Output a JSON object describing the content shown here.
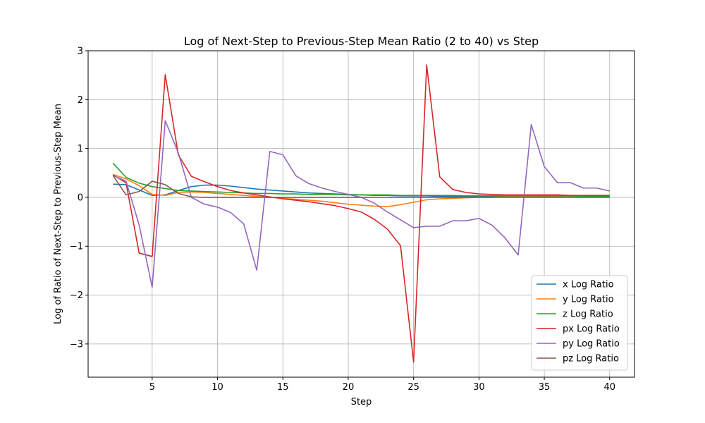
{
  "chart_data": {
    "type": "line",
    "title": "Log of Next-Step to Previous-Step Mean Ratio (2 to 40) vs Step",
    "xlabel": "Step",
    "ylabel": "Log of Ratio of Next-Step to Previous-Step Mean",
    "xlim": [
      0.1,
      41.9
    ],
    "ylim": [
      -3.68,
      3.0
    ],
    "xticks": [
      5,
      10,
      15,
      20,
      25,
      30,
      35,
      40
    ],
    "xtick_labels": [
      "5",
      "10",
      "15",
      "20",
      "25",
      "30",
      "35",
      "40"
    ],
    "yticks": [
      -3,
      -2,
      -1,
      0,
      1,
      2,
      3
    ],
    "ytick_labels": [
      "−3",
      "−2",
      "−1",
      "0",
      "1",
      "2",
      "3"
    ],
    "grid": true,
    "legend_position": "lower-right",
    "x": [
      2,
      3,
      4,
      5,
      6,
      7,
      8,
      9,
      10,
      11,
      12,
      13,
      14,
      15,
      16,
      17,
      18,
      19,
      20,
      21,
      22,
      23,
      24,
      25,
      26,
      27,
      28,
      29,
      30,
      31,
      32,
      33,
      34,
      35,
      36,
      37,
      38,
      39,
      40
    ],
    "series": [
      {
        "name": "x Log Ratio",
        "color": "#1f77b4",
        "values": [
          0.27,
          0.26,
          0.15,
          0.04,
          0.05,
          0.14,
          0.22,
          0.25,
          0.25,
          0.23,
          0.2,
          0.17,
          0.15,
          0.13,
          0.11,
          0.09,
          0.08,
          0.07,
          0.06,
          0.05,
          0.04,
          0.04,
          0.03,
          0.03,
          0.03,
          0.02,
          0.02,
          0.02,
          0.02,
          0.02,
          0.02,
          0.02,
          0.01,
          0.01,
          0.01,
          0.01,
          0.01,
          0.01,
          0.01
        ]
      },
      {
        "name": "y Log Ratio",
        "color": "#ff7f0e",
        "values": [
          0.47,
          0.38,
          0.24,
          0.06,
          0.04,
          0.1,
          0.11,
          0.1,
          0.08,
          0.06,
          0.04,
          0.02,
          0.0,
          -0.02,
          -0.04,
          -0.06,
          -0.08,
          -0.11,
          -0.14,
          -0.16,
          -0.18,
          -0.19,
          -0.15,
          -0.1,
          -0.05,
          -0.03,
          -0.02,
          -0.01,
          0.0,
          0.0,
          0.01,
          0.01,
          0.01,
          0.01,
          0.01,
          0.01,
          0.01,
          0.01,
          0.01
        ]
      },
      {
        "name": "z Log Ratio",
        "color": "#2ca02c",
        "values": [
          0.7,
          0.41,
          0.29,
          0.22,
          0.18,
          0.14,
          0.13,
          0.12,
          0.11,
          0.1,
          0.09,
          0.08,
          0.08,
          0.07,
          0.07,
          0.06,
          0.06,
          0.06,
          0.05,
          0.05,
          0.05,
          0.05,
          0.04,
          0.04,
          0.04,
          0.04,
          0.04,
          0.03,
          0.03,
          0.03,
          0.03,
          0.03,
          0.03,
          0.03,
          0.03,
          0.03,
          0.02,
          0.02,
          0.02
        ]
      },
      {
        "name": "px Log Ratio",
        "color": "#d62728",
        "values": [
          0.46,
          0.3,
          -1.14,
          -1.21,
          2.51,
          0.87,
          0.43,
          0.32,
          0.22,
          0.14,
          0.09,
          0.05,
          0.01,
          -0.03,
          -0.06,
          -0.09,
          -0.13,
          -0.17,
          -0.23,
          -0.3,
          -0.45,
          -0.65,
          -0.99,
          -3.37,
          2.71,
          0.42,
          0.16,
          0.1,
          0.07,
          0.06,
          0.05,
          0.05,
          0.05,
          0.05,
          0.05,
          0.04,
          0.04,
          0.04,
          0.04
        ]
      },
      {
        "name": "py Log Ratio",
        "color": "#9467bd",
        "values": [
          0.45,
          0.33,
          -0.56,
          -1.84,
          1.57,
          0.91,
          0.0,
          -0.14,
          -0.2,
          -0.31,
          -0.54,
          -1.49,
          0.94,
          0.87,
          0.44,
          0.28,
          0.19,
          0.12,
          0.06,
          0.0,
          -0.12,
          -0.3,
          -0.46,
          -0.62,
          -0.59,
          -0.59,
          -0.48,
          -0.48,
          -0.43,
          -0.57,
          -0.83,
          -1.18,
          1.49,
          0.63,
          0.3,
          0.3,
          0.19,
          0.19,
          0.13
        ]
      },
      {
        "name": "pz Log Ratio",
        "color": "#8c564b",
        "values": [
          0.45,
          0.05,
          0.12,
          0.33,
          0.26,
          0.08,
          0.01,
          0.0,
          0.0,
          0.0,
          0.0,
          0.0,
          0.0,
          0.0,
          0.0,
          0.0,
          0.0,
          0.0,
          0.0,
          0.0,
          0.0,
          0.0,
          0.0,
          0.0,
          0.0,
          0.0,
          0.0,
          0.0,
          0.0,
          0.0,
          0.0,
          0.0,
          0.0,
          0.0,
          0.0,
          0.0,
          0.0,
          0.0,
          0.0
        ]
      }
    ]
  }
}
